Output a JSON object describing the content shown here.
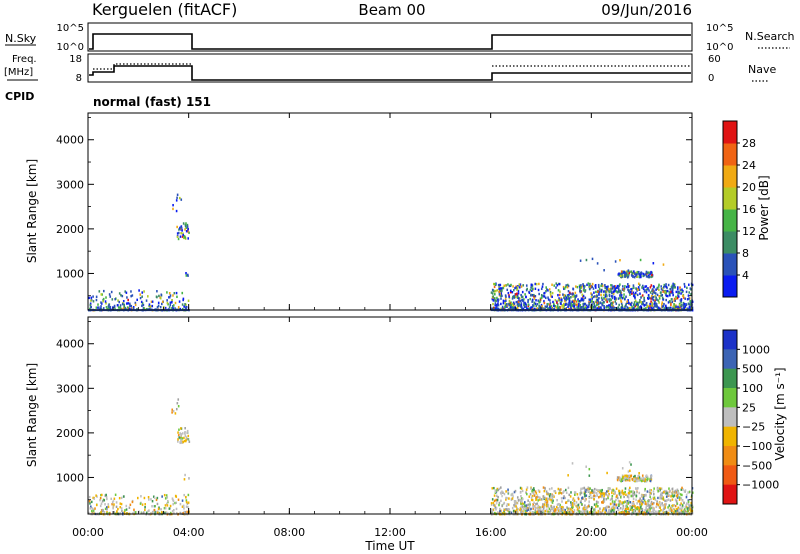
{
  "header": {
    "station": "Kerguelen (fitACF)",
    "beam": "Beam 00",
    "date": "09/Jun/2016"
  },
  "top_panels": {
    "nsky_label": "N.Sky",
    "nsearch_label": "N.Search",
    "nsky_ticks": [
      "10^5",
      "10^0"
    ],
    "nsearch_ticks": [
      "10^5",
      "10^0"
    ],
    "freq_label_1": "Freq.",
    "freq_label_2": "[MHz]",
    "freq_ticks": [
      "18",
      "8"
    ],
    "nave_label": "Nave",
    "nave_ticks": [
      "60",
      "0"
    ],
    "cpid_label": "CPID",
    "cpid_text": "normal (fast) 151"
  },
  "chart_data": [
    {
      "type": "heatmap",
      "name": "power",
      "ylabel": "Slant Range [km]",
      "ylim": [
        180,
        4600
      ],
      "yticks": [
        1000,
        2000,
        3000,
        4000
      ],
      "xlim": [
        0,
        24
      ],
      "data_windows_ut": [
        [
          0,
          4
        ],
        [
          16,
          24
        ]
      ],
      "colorbar": {
        "label": "Power [dB]",
        "ticks": [
          "4",
          "8",
          "12",
          "16",
          "20",
          "24",
          "28"
        ],
        "colors": [
          "#0a1cf0",
          "#2a52b8",
          "#3c8c64",
          "#46b446",
          "#b4cc28",
          "#f0aa14",
          "#f06414",
          "#e01414"
        ]
      }
    },
    {
      "type": "heatmap",
      "name": "velocity",
      "ylabel": "Slant Range [km]",
      "ylim": [
        180,
        4600
      ],
      "yticks": [
        1000,
        2000,
        3000,
        4000
      ],
      "xlim": [
        0,
        24
      ],
      "data_windows_ut": [
        [
          0,
          4
        ],
        [
          16,
          24
        ]
      ],
      "colorbar": {
        "label": "Velocity [m s⁻¹]",
        "ticks": [
          "1000",
          "500",
          "100",
          "25",
          "−25",
          "−100",
          "−500",
          "−1000"
        ],
        "colors": [
          "#1c32c8",
          "#3c64b4",
          "#3c9650",
          "#6ec83c",
          "#bebebe",
          "#f0b400",
          "#f08c14",
          "#f05a14",
          "#e01414"
        ]
      }
    }
  ],
  "xaxis": {
    "label": "Time UT",
    "ticks": [
      "00:00",
      "04:00",
      "08:00",
      "12:00",
      "16:00",
      "20:00",
      "00:00"
    ]
  }
}
